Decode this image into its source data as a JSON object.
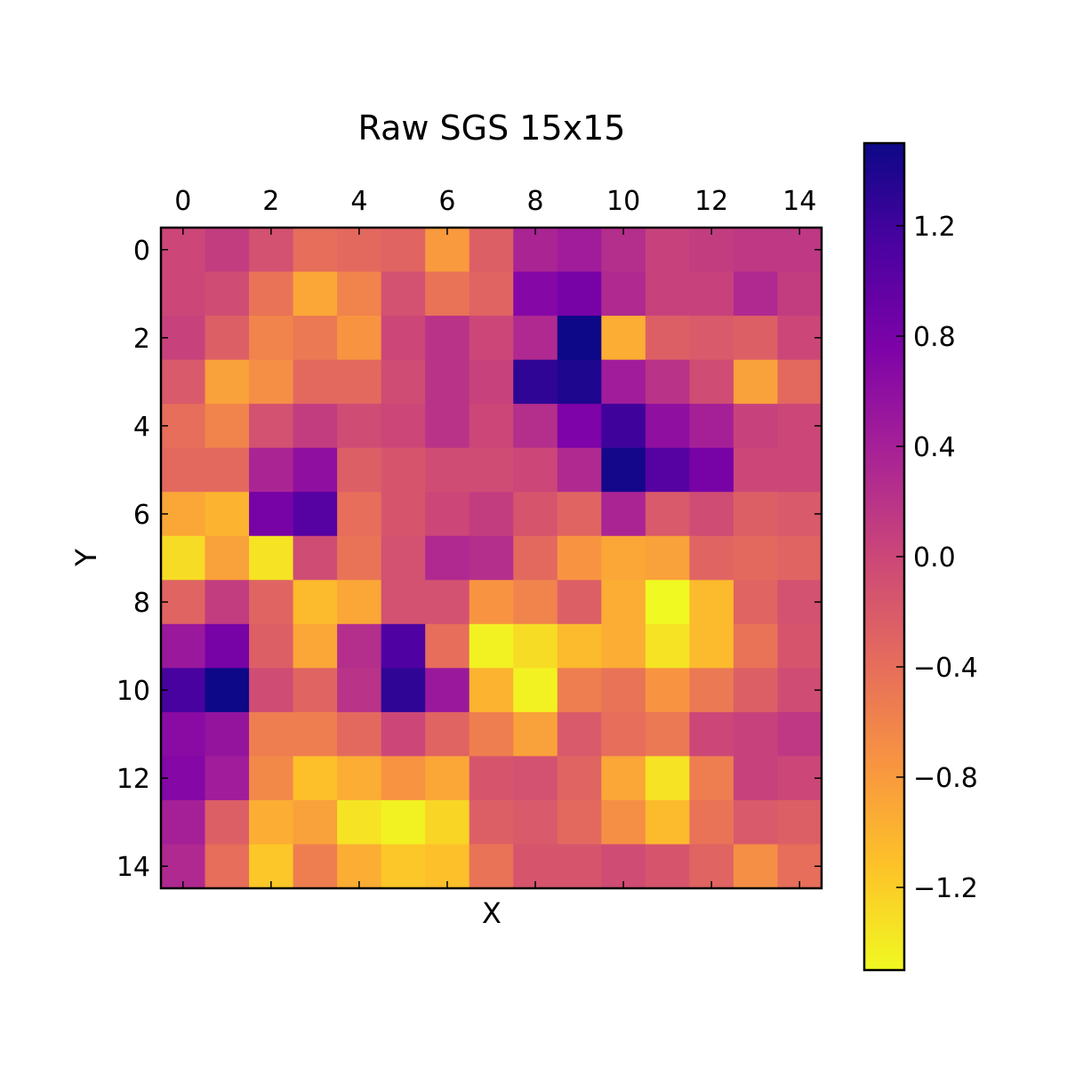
{
  "chart_data": {
    "type": "heatmap",
    "title": "Raw SGS 15x15",
    "xlabel": "X",
    "ylabel": "Y",
    "x_ticks": [
      "0",
      "2",
      "4",
      "6",
      "8",
      "10",
      "12",
      "14"
    ],
    "y_ticks": [
      "0",
      "2",
      "4",
      "6",
      "8",
      "10",
      "12",
      "14"
    ],
    "x_axis_position": "top",
    "colormap": "plasma_r",
    "color_range": [
      -1.5,
      1.5
    ],
    "colorbar_ticks": [
      "1.2",
      "0.8",
      "0.4",
      "0.0",
      "−0.4",
      "−0.8",
      "−1.2"
    ],
    "grid": false,
    "values": [
      [
        0.0,
        0.1,
        -0.1,
        -0.4,
        -0.35,
        -0.3,
        -0.8,
        -0.25,
        0.35,
        0.45,
        0.25,
        0.05,
        0.1,
        0.15,
        0.15
      ],
      [
        0.0,
        -0.05,
        -0.45,
        -0.9,
        -0.6,
        -0.1,
        -0.45,
        -0.3,
        0.7,
        0.8,
        0.3,
        0.05,
        0.05,
        0.3,
        0.1
      ],
      [
        0.05,
        -0.25,
        -0.6,
        -0.5,
        -0.75,
        0.0,
        0.2,
        0.0,
        0.3,
        1.5,
        -0.95,
        -0.25,
        -0.2,
        -0.25,
        0.0
      ],
      [
        -0.2,
        -0.85,
        -0.7,
        -0.35,
        -0.35,
        -0.05,
        0.2,
        0.05,
        1.3,
        1.4,
        0.45,
        0.2,
        -0.05,
        -0.85,
        -0.35
      ],
      [
        -0.4,
        -0.6,
        -0.1,
        0.1,
        -0.05,
        0.0,
        0.2,
        0.0,
        0.25,
        0.75,
        1.2,
        0.6,
        0.4,
        0.05,
        0.0
      ],
      [
        -0.35,
        -0.35,
        0.35,
        0.6,
        -0.25,
        -0.15,
        -0.05,
        -0.05,
        0.0,
        0.3,
        1.45,
        1.05,
        0.8,
        0.0,
        0.0
      ],
      [
        -0.9,
        -1.0,
        0.8,
        1.05,
        -0.4,
        -0.15,
        0.0,
        0.1,
        -0.15,
        -0.3,
        0.35,
        -0.2,
        -0.05,
        -0.25,
        -0.2
      ],
      [
        -1.3,
        -0.85,
        -1.35,
        -0.05,
        -0.45,
        -0.1,
        0.3,
        0.25,
        -0.35,
        -0.75,
        -0.9,
        -0.85,
        -0.3,
        -0.35,
        -0.3
      ],
      [
        -0.3,
        0.1,
        -0.3,
        -1.05,
        -0.9,
        -0.1,
        -0.1,
        -0.75,
        -0.6,
        -0.25,
        -0.95,
        -1.55,
        -1.05,
        -0.3,
        -0.1
      ],
      [
        0.5,
        0.8,
        -0.25,
        -0.9,
        0.25,
        1.1,
        -0.4,
        -1.45,
        -1.3,
        -1.05,
        -0.95,
        -1.35,
        -1.05,
        -0.45,
        -0.15
      ],
      [
        1.15,
        1.5,
        -0.05,
        -0.3,
        0.2,
        1.3,
        0.5,
        -1.0,
        -1.45,
        -0.55,
        -0.45,
        -0.75,
        -0.5,
        -0.25,
        -0.05
      ],
      [
        0.65,
        0.55,
        -0.55,
        -0.55,
        -0.35,
        0.0,
        -0.3,
        -0.55,
        -0.85,
        -0.2,
        -0.4,
        -0.5,
        0.0,
        0.05,
        0.15
      ],
      [
        0.7,
        0.45,
        -0.65,
        -1.1,
        -0.95,
        -0.75,
        -0.9,
        -0.15,
        -0.1,
        -0.3,
        -0.9,
        -1.35,
        -0.55,
        0.05,
        0.0
      ],
      [
        0.4,
        -0.25,
        -0.95,
        -0.85,
        -1.35,
        -1.45,
        -1.25,
        -0.25,
        -0.2,
        -0.35,
        -0.7,
        -1.05,
        -0.45,
        -0.2,
        -0.25
      ],
      [
        0.3,
        -0.4,
        -1.15,
        -0.55,
        -0.95,
        -1.15,
        -1.1,
        -0.45,
        -0.15,
        -0.15,
        -0.05,
        -0.15,
        -0.3,
        -0.7,
        -0.4
      ]
    ]
  }
}
